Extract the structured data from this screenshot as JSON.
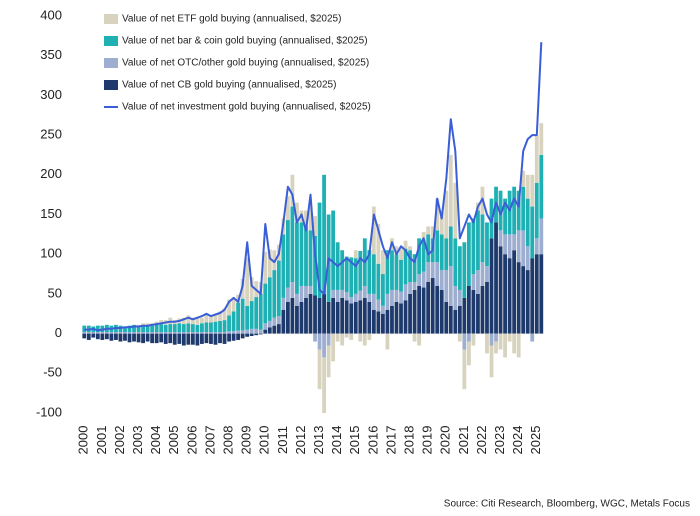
{
  "chart_data": {
    "type": "bar",
    "stacked": true,
    "categories": [
      "2000",
      null,
      null,
      null,
      "2001",
      null,
      null,
      null,
      "2002",
      null,
      null,
      null,
      "2003",
      null,
      null,
      null,
      "2004",
      null,
      null,
      null,
      "2005",
      null,
      null,
      null,
      "2006",
      null,
      null,
      null,
      "2007",
      null,
      null,
      null,
      "2008",
      null,
      null,
      null,
      "2009",
      null,
      null,
      null,
      "2010",
      null,
      null,
      null,
      "2011",
      null,
      null,
      null,
      "2012",
      null,
      null,
      null,
      "2013",
      null,
      null,
      null,
      "2014",
      null,
      null,
      null,
      "2015",
      null,
      null,
      null,
      "2016",
      null,
      null,
      null,
      "2017",
      null,
      null,
      null,
      "2018",
      null,
      null,
      null,
      "2019",
      null,
      null,
      null,
      "2020",
      null,
      null,
      null,
      "2021",
      null,
      null,
      null,
      "2022",
      null,
      null,
      null,
      "2023",
      null,
      null,
      null,
      "2024",
      null,
      null,
      null,
      "2025",
      null
    ],
    "series": [
      {
        "name": "Value of net ETF gold buying (annualised, $2025)",
        "color": "#d8d3bf",
        "values": [
          0,
          0,
          0,
          0,
          0,
          0,
          0,
          0,
          0,
          0,
          0,
          0,
          2,
          3,
          2,
          3,
          4,
          5,
          6,
          8,
          5,
          6,
          8,
          10,
          8,
          9,
          7,
          10,
          8,
          10,
          12,
          15,
          20,
          15,
          10,
          25,
          60,
          30,
          20,
          15,
          40,
          35,
          25,
          20,
          20,
          30,
          40,
          25,
          15,
          20,
          30,
          25,
          -50,
          -70,
          -40,
          -35,
          -10,
          -15,
          -5,
          -8,
          10,
          -10,
          -15,
          -8,
          60,
          50,
          30,
          -20,
          15,
          10,
          15,
          10,
          5,
          -10,
          -15,
          10,
          10,
          15,
          40,
          30,
          60,
          90,
          70,
          -10,
          -50,
          -30,
          -15,
          10,
          35,
          -25,
          -40,
          -15,
          -20,
          -30,
          -10,
          -25,
          -30,
          20,
          30,
          40,
          60,
          40
        ]
      },
      {
        "name": "Value of net bar & coin gold buying (annualised, $2025)",
        "color": "#1fb0b4",
        "values": [
          8,
          8,
          7,
          8,
          8,
          9,
          8,
          9,
          8,
          7,
          8,
          9,
          7,
          8,
          9,
          8,
          9,
          10,
          9,
          10,
          10,
          11,
          10,
          11,
          10,
          9,
          11,
          12,
          12,
          13,
          14,
          15,
          20,
          25,
          35,
          40,
          30,
          35,
          40,
          45,
          50,
          55,
          60,
          70,
          80,
          85,
          95,
          90,
          80,
          75,
          70,
          75,
          120,
          150,
          110,
          100,
          60,
          50,
          45,
          50,
          45,
          50,
          60,
          55,
          50,
          45,
          40,
          55,
          50,
          45,
          40,
          45,
          40,
          35,
          45,
          40,
          35,
          30,
          40,
          45,
          40,
          50,
          60,
          55,
          70,
          80,
          70,
          75,
          60,
          55,
          50,
          45,
          50,
          45,
          55,
          60,
          50,
          55,
          60,
          65,
          70,
          80
        ]
      },
      {
        "name": "Value of net OTC/other gold buying (annualised, $2025)",
        "color": "#9eaed0",
        "values": [
          2,
          2,
          2,
          2,
          2,
          2,
          2,
          2,
          2,
          2,
          2,
          2,
          2,
          2,
          2,
          2,
          2,
          2,
          2,
          2,
          2,
          2,
          2,
          2,
          2,
          2,
          2,
          2,
          2,
          2,
          2,
          2,
          3,
          3,
          4,
          4,
          5,
          6,
          6,
          5,
          8,
          8,
          10,
          10,
          15,
          18,
          20,
          15,
          20,
          15,
          10,
          -10,
          -20,
          -30,
          -15,
          10,
          15,
          10,
          10,
          8,
          10,
          12,
          15,
          10,
          20,
          15,
          10,
          20,
          20,
          15,
          15,
          20,
          15,
          10,
          15,
          20,
          25,
          20,
          30,
          25,
          40,
          50,
          30,
          20,
          -20,
          -10,
          20,
          30,
          30,
          20,
          -15,
          -10,
          20,
          25,
          30,
          20,
          40,
          45,
          30,
          -10,
          20,
          45
        ]
      },
      {
        "name": "Value of net CB gold buying (annualised, $2025)",
        "color": "#1e3a6d",
        "values": [
          -6,
          -8,
          -5,
          -7,
          -8,
          -7,
          -9,
          -8,
          -10,
          -9,
          -11,
          -10,
          -11,
          -12,
          -10,
          -12,
          -12,
          -11,
          -13,
          -12,
          -14,
          -13,
          -15,
          -14,
          -14,
          -15,
          -13,
          -12,
          -13,
          -14,
          -12,
          -13,
          -10,
          -9,
          -8,
          -6,
          -4,
          -3,
          -2,
          -1,
          5,
          8,
          10,
          12,
          30,
          40,
          45,
          35,
          40,
          45,
          50,
          48,
          45,
          50,
          40,
          45,
          40,
          45,
          42,
          38,
          40,
          42,
          45,
          40,
          30,
          28,
          25,
          30,
          35,
          40,
          38,
          42,
          50,
          55,
          60,
          58,
          65,
          70,
          60,
          55,
          40,
          35,
          30,
          35,
          45,
          60,
          55,
          50,
          60,
          65,
          120,
          140,
          110,
          100,
          95,
          105,
          90,
          85,
          80,
          95,
          100,
          100
        ]
      },
      {
        "name": "Value of net investment gold buying (annualised, $2025)",
        "color": "#3a5ed6",
        "type": "line",
        "values": [
          5,
          5,
          6,
          4,
          5,
          6,
          6,
          7,
          7,
          8,
          8,
          9,
          9,
          10,
          10,
          11,
          12,
          13,
          14,
          15,
          15,
          16,
          18,
          20,
          18,
          20,
          22,
          25,
          22,
          24,
          26,
          30,
          40,
          45,
          40,
          60,
          115,
          60,
          55,
          50,
          138,
          95,
          90,
          100,
          140,
          185,
          175,
          140,
          150,
          130,
          175,
          100,
          55,
          50,
          95,
          90,
          85,
          90,
          95,
          90,
          85,
          95,
          90,
          100,
          150,
          130,
          110,
          95,
          115,
          100,
          110,
          105,
          95,
          90,
          110,
          120,
          100,
          105,
          170,
          145,
          195,
          270,
          230,
          120,
          135,
          150,
          140,
          160,
          170,
          150,
          140,
          165,
          150,
          165,
          155,
          170,
          160,
          230,
          245,
          250,
          250,
          367
        ]
      }
    ],
    "ylim": [
      -100,
      400
    ],
    "yticks": [
      -100,
      -50,
      0,
      50,
      100,
      150,
      200,
      250,
      300,
      350,
      400
    ],
    "grid": false,
    "legend": "top-left",
    "source": "Source: Citi Research, Bloomberg, WGC, Metals Focus"
  }
}
